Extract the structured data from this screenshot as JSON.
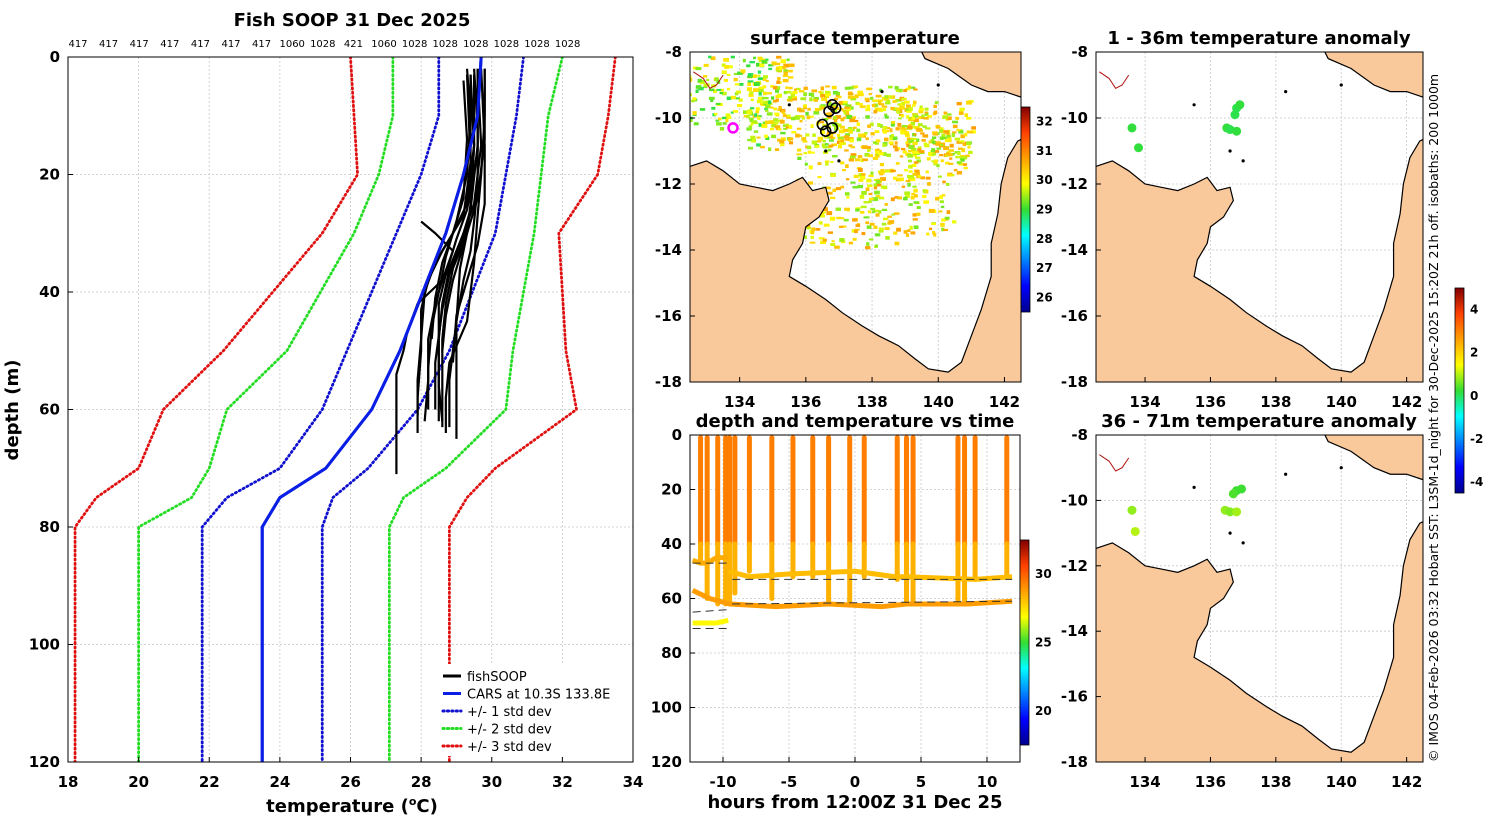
{
  "credit": "© IMOS 04-Feb-2026 03:32 Hobart SST: L3SM-1d_night for 30-Dec-2025 15:20Z 21h off. isobaths: 200  1000m",
  "colors": {
    "std1": "#1010d0",
    "std2": "#22dd22",
    "std3": "#e01010",
    "cars": "#0a1ee6",
    "land": "#f9c89b",
    "ice": "#ffffff"
  },
  "chart_data": [
    {
      "id": "profile",
      "type": "line",
      "title": "Fish SOOP 31 Dec 2025",
      "xlabel": "temperature (°C)",
      "ylabel": "depth (m)",
      "xlim": [
        18,
        34
      ],
      "ylim": [
        120,
        0
      ],
      "xticks": [
        "18",
        "20",
        "22",
        "24",
        "26",
        "28",
        "30",
        "32",
        "34"
      ],
      "yticks": [
        "0",
        "20",
        "40",
        "60",
        "80",
        "100",
        "120"
      ],
      "top_labels": [
        "417",
        "417",
        "417",
        "417",
        "417",
        "417",
        "417",
        "1060",
        "1028",
        "421",
        "1060",
        "1028",
        "1028",
        "1028",
        "1028",
        "1028",
        "1028"
      ],
      "depth": [
        0,
        10,
        20,
        30,
        50,
        60,
        70,
        75,
        80,
        120
      ],
      "series": [
        {
          "name": "CARS at 10.3S 133.8E",
          "style": "solid",
          "color": "cars",
          "temps": [
            29.7,
            29.6,
            29.2,
            28.7,
            27.4,
            26.6,
            25.3,
            24.0,
            23.5,
            23.5
          ]
        },
        {
          "name": "+/- 1 std dev",
          "style": "dotted",
          "color": "std1",
          "temps": [
            30.9,
            30.7,
            30.4,
            30.1,
            28.8,
            27.9,
            26.5,
            25.5,
            25.2,
            25.2
          ]
        },
        {
          "name": "",
          "style": "dotted",
          "color": "std1",
          "temps": [
            28.5,
            28.5,
            28.0,
            27.3,
            25.9,
            25.2,
            24.0,
            22.5,
            21.8,
            21.8
          ]
        },
        {
          "name": "+/- 2 std dev",
          "style": "dotted",
          "color": "std2",
          "temps": [
            32.0,
            31.6,
            31.4,
            31.2,
            30.6,
            30.4,
            28.7,
            27.5,
            27.1,
            27.1
          ]
        },
        {
          "name": "",
          "style": "dotted",
          "color": "std2",
          "temps": [
            27.2,
            27.2,
            26.8,
            26.1,
            24.2,
            22.5,
            22.0,
            21.5,
            20.0,
            20.0
          ]
        },
        {
          "name": "+/- 3 std dev",
          "style": "dotted",
          "color": "std3",
          "temps": [
            33.5,
            33.3,
            33.0,
            31.9,
            32.1,
            32.4,
            30.1,
            29.3,
            28.8,
            28.8
          ]
        },
        {
          "name": "",
          "style": "dotted",
          "color": "std3",
          "temps": [
            26.0,
            26.1,
            26.2,
            25.2,
            22.4,
            20.7,
            20.0,
            18.8,
            18.2,
            18.2
          ]
        }
      ],
      "fish_profiles": [
        {
          "depths": [
            2,
            10,
            20,
            27,
            35,
            40,
            45,
            52,
            58,
            64
          ],
          "temps": [
            29.8,
            29.8,
            29.7,
            29.6,
            29.5,
            29.4,
            29.3,
            28.8,
            28.7,
            28.7
          ]
        },
        {
          "depths": [
            2,
            12,
            22,
            28,
            33,
            38,
            45,
            55,
            63
          ],
          "temps": [
            29.5,
            29.6,
            29.6,
            29.5,
            29.4,
            29.2,
            29.0,
            28.8,
            28.8
          ]
        },
        {
          "depths": [
            3,
            15,
            25,
            30,
            36,
            42,
            48,
            55,
            62
          ],
          "temps": [
            29.6,
            29.7,
            29.5,
            29.2,
            28.8,
            28.6,
            28.5,
            28.5,
            28.5
          ]
        },
        {
          "depths": [
            2,
            10,
            20,
            28,
            34,
            40,
            46,
            53,
            60
          ],
          "temps": [
            29.3,
            29.4,
            29.3,
            29.0,
            28.7,
            28.5,
            28.3,
            28.2,
            28.2
          ]
        },
        {
          "depths": [
            4,
            15,
            25,
            30,
            35,
            40,
            48,
            55,
            61
          ],
          "temps": [
            29.4,
            29.5,
            29.3,
            28.9,
            28.4,
            28.1,
            28.0,
            27.9,
            27.9
          ]
        },
        {
          "depths": [
            3,
            15,
            25,
            30,
            36,
            45,
            52,
            58,
            65
          ],
          "temps": [
            29.4,
            29.4,
            29.4,
            29.3,
            29.1,
            29.0,
            29.0,
            29.0,
            29.0
          ]
        },
        {
          "depths": [
            2,
            15,
            26,
            33,
            38,
            42,
            48,
            55,
            62
          ],
          "temps": [
            29.6,
            29.6,
            29.4,
            29.1,
            28.6,
            28.4,
            28.2,
            28.2,
            28.1
          ]
        },
        {
          "depths": [
            3,
            18,
            27,
            33,
            38,
            43,
            50,
            58,
            64
          ],
          "temps": [
            29.3,
            29.4,
            29.2,
            28.6,
            28.2,
            28.0,
            28.0,
            27.9,
            27.9
          ]
        },
        {
          "depths": [
            2,
            15,
            25,
            32,
            38,
            44,
            52
          ],
          "temps": [
            29.7,
            29.8,
            29.8,
            29.6,
            29.3,
            29.0,
            28.9
          ]
        },
        {
          "depths": [
            3,
            15,
            26,
            32,
            37,
            43,
            52,
            60
          ],
          "temps": [
            29.5,
            29.5,
            29.4,
            29.1,
            28.8,
            28.6,
            28.4,
            28.4
          ]
        },
        {
          "depths": [
            2,
            14,
            24,
            30,
            36,
            42,
            48,
            57,
            63
          ],
          "temps": [
            29.8,
            29.8,
            29.6,
            29.3,
            28.9,
            28.7,
            28.6,
            28.6,
            28.6
          ]
        },
        {
          "depths": [
            4,
            14,
            24,
            30,
            35,
            41,
            48
          ],
          "temps": [
            29.2,
            29.3,
            29.2,
            28.9,
            28.6,
            28.4,
            28.3
          ]
        },
        {
          "depths": [
            2,
            16,
            26,
            31,
            37,
            42,
            49,
            56,
            62
          ],
          "temps": [
            29.6,
            29.6,
            29.3,
            29.0,
            28.7,
            28.5,
            28.5,
            28.5,
            28.6
          ]
        },
        {
          "depths": [
            3,
            15,
            26,
            32,
            38,
            44,
            50
          ],
          "temps": [
            29.4,
            29.5,
            29.4,
            29.2,
            28.9,
            28.7,
            28.6
          ]
        },
        {
          "depths": [
            28,
            30,
            33,
            38,
            42,
            47,
            50,
            54,
            58,
            63,
            68,
            71
          ],
          "temps": [
            28.0,
            28.4,
            28.9,
            28.6,
            27.9,
            27.6,
            27.5,
            27.3,
            27.3,
            27.3,
            27.3,
            27.3
          ]
        }
      ],
      "legend": [
        "fishSOOP",
        "CARS at 10.3S 133.8E",
        "+/- 1 std dev",
        "+/- 2 std dev",
        "+/- 3 std dev"
      ]
    },
    {
      "id": "sst_map",
      "type": "heatmap",
      "title": "surface temperature",
      "xticks": [
        "134",
        "136",
        "138",
        "140",
        "142"
      ],
      "yticks": [
        "-8",
        "-10",
        "-12",
        "-14",
        "-16",
        "-18"
      ],
      "xlim": [
        132.5,
        142.5
      ],
      "ylim": [
        -18,
        -8
      ],
      "colorbar": {
        "range": [
          25.5,
          32.5
        ],
        "ticks": [
          "26",
          "27",
          "28",
          "29",
          "30",
          "31",
          "32"
        ]
      },
      "track_positions": [
        [
          136.8,
          -9.6
        ],
        [
          136.9,
          -9.7
        ],
        [
          136.7,
          -9.8
        ],
        [
          136.5,
          -10.2
        ],
        [
          136.8,
          -10.3
        ],
        [
          136.6,
          -10.4
        ]
      ],
      "marker_position": [
        133.8,
        -10.3
      ]
    },
    {
      "id": "anom_1_36",
      "type": "scatter",
      "title": "1 - 36m temperature anomaly",
      "xticks": [
        "134",
        "136",
        "138",
        "140",
        "142"
      ],
      "yticks": [
        "-8",
        "-10",
        "-12",
        "-14",
        "-16",
        "-18"
      ],
      "xlim": [
        132.5,
        142.5
      ],
      "ylim": [
        -18,
        -8
      ],
      "points": [
        {
          "lon": 133.6,
          "lat": -10.3,
          "anom": 0.2
        },
        {
          "lon": 133.8,
          "lat": -10.9,
          "anom": 0.2
        },
        {
          "lon": 136.8,
          "lat": -9.7,
          "anom": 0.1
        },
        {
          "lon": 136.9,
          "lat": -9.6,
          "anom": 0.2
        },
        {
          "lon": 136.75,
          "lat": -9.9,
          "anom": 0.1
        },
        {
          "lon": 136.5,
          "lat": -10.3,
          "anom": 0.2
        },
        {
          "lon": 136.6,
          "lat": -10.35,
          "anom": 0.1
        },
        {
          "lon": 136.8,
          "lat": -10.4,
          "anom": 0.2
        }
      ],
      "colorbar": {
        "range": [
          -4.5,
          5.0
        ],
        "ticks": [
          "4",
          "2",
          "0",
          "-2",
          "-4"
        ]
      }
    },
    {
      "id": "anom_36_71",
      "type": "scatter",
      "title": "36 - 71m temperature anomaly",
      "xticks": [
        "134",
        "136",
        "138",
        "140",
        "142"
      ],
      "yticks": [
        "-8",
        "-10",
        "-12",
        "-14",
        "-16",
        "-18"
      ],
      "xlim": [
        132.5,
        142.5
      ],
      "ylim": [
        -18,
        -8
      ],
      "points": [
        {
          "lon": 133.6,
          "lat": -10.3,
          "anom": 0.8
        },
        {
          "lon": 133.7,
          "lat": -10.95,
          "anom": 1.0
        },
        {
          "lon": 136.8,
          "lat": -9.7,
          "anom": 0.3
        },
        {
          "lon": 136.95,
          "lat": -9.65,
          "anom": 0.3
        },
        {
          "lon": 136.7,
          "lat": -9.8,
          "anom": 0.4
        },
        {
          "lon": 136.45,
          "lat": -10.3,
          "anom": 0.8
        },
        {
          "lon": 136.6,
          "lat": -10.35,
          "anom": 0.7
        },
        {
          "lon": 136.8,
          "lat": -10.35,
          "anom": 0.9
        }
      ]
    },
    {
      "id": "depth_time",
      "type": "scatter",
      "title": "depth and temperature vs time",
      "xlabel": "hours from 12:00Z 31 Dec 25",
      "xlim": [
        -12.5,
        12.5
      ],
      "ylim": [
        120,
        0
      ],
      "xticks": [
        "-10",
        "-5",
        "0",
        "5",
        "10"
      ],
      "yticks": [
        "0",
        "20",
        "40",
        "60",
        "80",
        "100",
        "120"
      ],
      "colorbar": {
        "range": [
          17.5,
          32.5
        ],
        "ticks": [
          "30",
          "25",
          "20"
        ]
      },
      "casts": [
        {
          "t": -11.7,
          "bottom": 47,
          "bt": 28.5
        },
        {
          "t": -11.2,
          "bottom": 60,
          "bt": 28.5
        },
        {
          "t": -10.4,
          "bottom": 62,
          "bt": 28.5
        },
        {
          "t": -9.8,
          "bottom": 62,
          "bt": 28.5
        },
        {
          "t": -9.5,
          "bottom": 62,
          "bt": 28.5
        },
        {
          "t": -9.1,
          "bottom": 58,
          "bt": 28.5
        },
        {
          "t": -8.0,
          "bottom": 50,
          "bt": 28.0
        },
        {
          "t": -6.3,
          "bottom": 60,
          "bt": 28.5
        },
        {
          "t": -4.7,
          "bottom": 52,
          "bt": 28.0
        },
        {
          "t": -3.2,
          "bottom": 52,
          "bt": 28.0
        },
        {
          "t": -2.0,
          "bottom": 62,
          "bt": 28.5
        },
        {
          "t": -0.4,
          "bottom": 62,
          "bt": 28.5
        },
        {
          "t": 0.7,
          "bottom": 52,
          "bt": 28.0
        },
        {
          "t": 3.2,
          "bottom": 53,
          "bt": 28.0
        },
        {
          "t": 3.9,
          "bottom": 62,
          "bt": 28.5
        },
        {
          "t": 4.4,
          "bottom": 62,
          "bt": 28.5
        },
        {
          "t": 7.8,
          "bottom": 62,
          "bt": 28.5
        },
        {
          "t": 8.3,
          "bottom": 62,
          "bt": 28.5
        },
        {
          "t": 9.1,
          "bottom": 53,
          "bt": 28.0
        },
        {
          "t": 11.5,
          "bottom": 52,
          "bt": 28.0
        }
      ],
      "bottom_tracks": [
        {
          "t": [
            -12.3,
            -11.7,
            -11.2,
            -10.5,
            -9.6
          ],
          "d": [
            46,
            47,
            47,
            45,
            45
          ],
          "bt": 28.5
        },
        {
          "t": [
            -9.6,
            -8.0,
            -5.0,
            0.0,
            3.0,
            3.9,
            9.1,
            11.9
          ],
          "d": [
            50,
            52,
            51,
            50,
            52,
            52,
            53,
            52
          ],
          "bt": 28.2
        },
        {
          "t": [
            -12.3,
            -11.0,
            -9.5,
            -6.0,
            -2.0,
            2.0,
            4.0,
            8.5,
            11.9
          ],
          "d": [
            57,
            60,
            62,
            63,
            62,
            63,
            62,
            62,
            61
          ],
          "bt": 28.8
        },
        {
          "t": [
            -12.3,
            -10.5,
            -9.6
          ],
          "d": [
            69,
            69,
            68
          ],
          "bt": 27.0
        }
      ],
      "bathy_lines": [
        {
          "t": [
            -12.3,
            -9.4
          ],
          "d": [
            47,
            47
          ]
        },
        {
          "t": [
            -9.3,
            11.9
          ],
          "d": [
            53,
            53
          ]
        },
        {
          "t": [
            -9.3,
            11.9
          ],
          "d": [
            62,
            61
          ]
        },
        {
          "t": [
            -12.3,
            -9.4
          ],
          "d": [
            65,
            64
          ]
        },
        {
          "t": [
            -12.3,
            -9.4
          ],
          "d": [
            71,
            71
          ]
        }
      ]
    }
  ]
}
